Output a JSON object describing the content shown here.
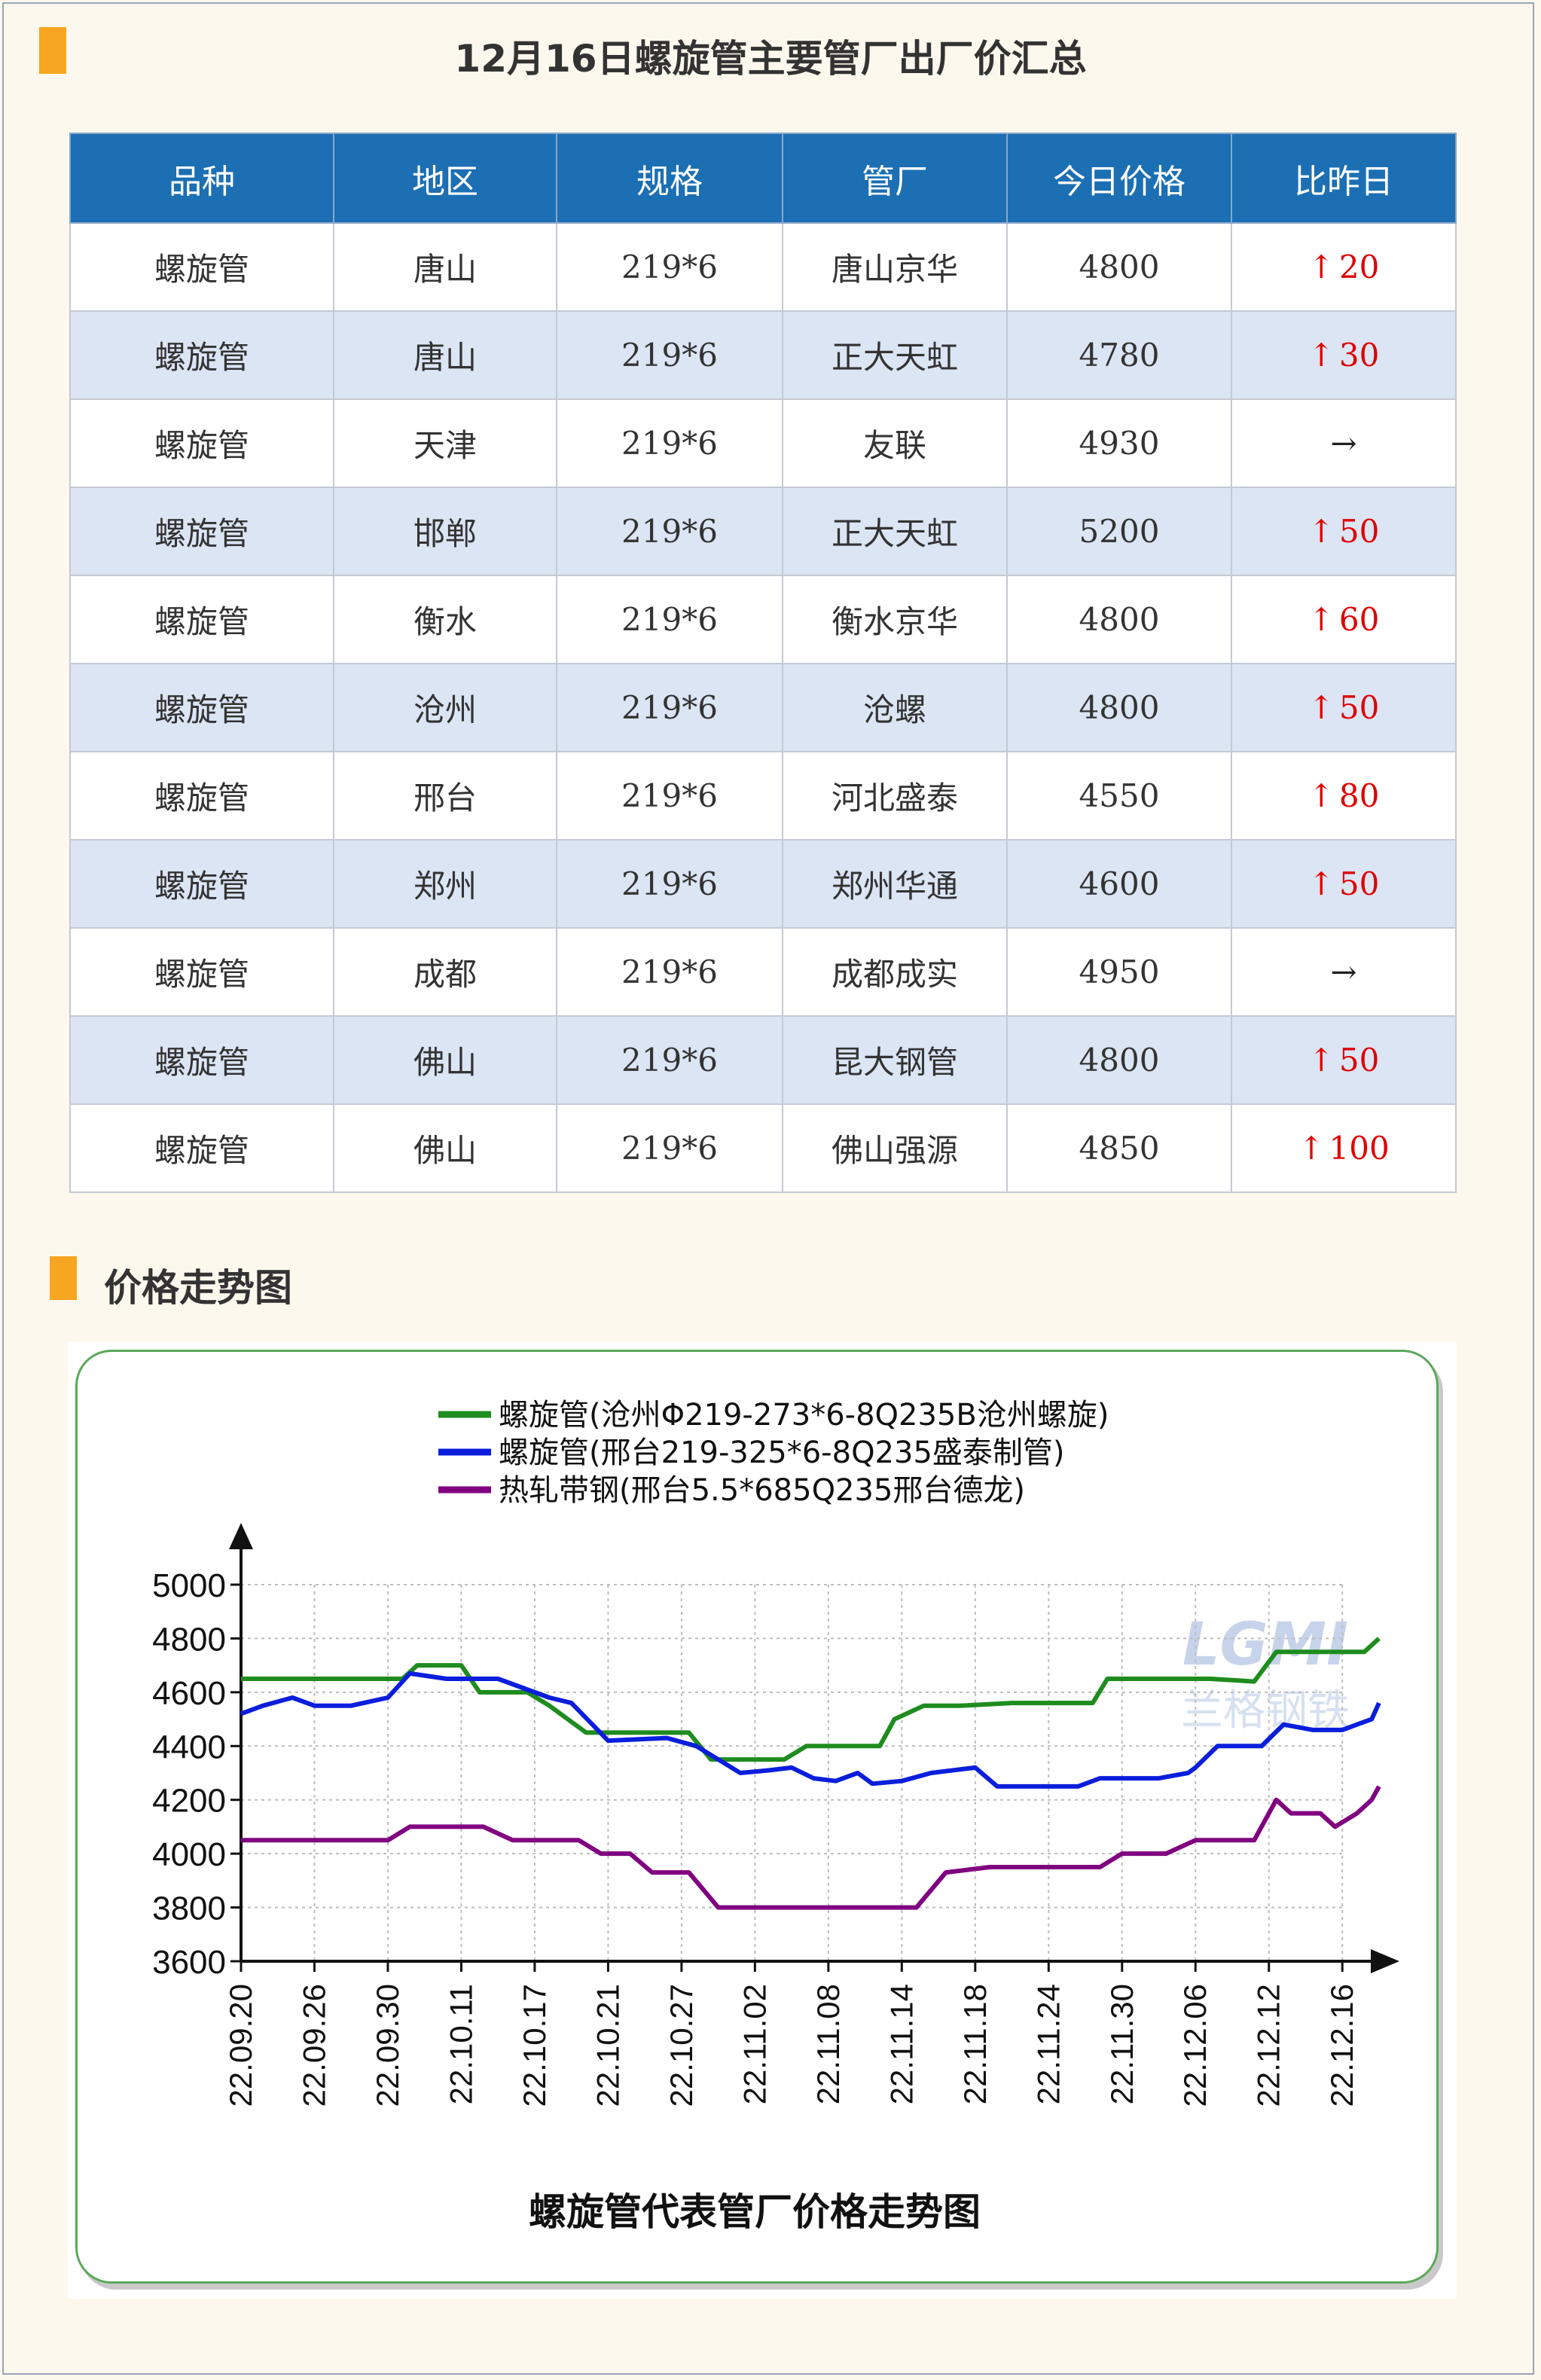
{
  "header": {
    "title": "12月16日螺旋管主要管厂出厂价汇总"
  },
  "table": {
    "columns": [
      "品种",
      "地区",
      "规格",
      "管厂",
      "今日价格",
      "比昨日"
    ],
    "rows": [
      {
        "product": "螺旋管",
        "region": "唐山",
        "spec": "219*6",
        "mill": "唐山京华",
        "price": "4800",
        "change": "20",
        "trend": "up"
      },
      {
        "product": "螺旋管",
        "region": "唐山",
        "spec": "219*6",
        "mill": "正大天虹",
        "price": "4780",
        "change": "30",
        "trend": "up"
      },
      {
        "product": "螺旋管",
        "region": "天津",
        "spec": "219*6",
        "mill": "友联",
        "price": "4930",
        "change": "",
        "trend": "flat"
      },
      {
        "product": "螺旋管",
        "region": "邯郸",
        "spec": "219*6",
        "mill": "正大天虹",
        "price": "5200",
        "change": "50",
        "trend": "up"
      },
      {
        "product": "螺旋管",
        "region": "衡水",
        "spec": "219*6",
        "mill": "衡水京华",
        "price": "4800",
        "change": "60",
        "trend": "up"
      },
      {
        "product": "螺旋管",
        "region": "沧州",
        "spec": "219*6",
        "mill": "沧螺",
        "price": "4800",
        "change": "50",
        "trend": "up"
      },
      {
        "product": "螺旋管",
        "region": "邢台",
        "spec": "219*6",
        "mill": "河北盛泰",
        "price": "4550",
        "change": "80",
        "trend": "up"
      },
      {
        "product": "螺旋管",
        "region": "郑州",
        "spec": "219*6",
        "mill": "郑州华通",
        "price": "4600",
        "change": "50",
        "trend": "up"
      },
      {
        "product": "螺旋管",
        "region": "成都",
        "spec": "219*6",
        "mill": "成都成实",
        "price": "4950",
        "change": "",
        "trend": "flat"
      },
      {
        "product": "螺旋管",
        "region": "佛山",
        "spec": "219*6",
        "mill": "昆大钢管",
        "price": "4800",
        "change": "50",
        "trend": "up"
      },
      {
        "product": "螺旋管",
        "region": "佛山",
        "spec": "219*6",
        "mill": "佛山强源",
        "price": "4850",
        "change": "100",
        "trend": "up"
      }
    ],
    "up_arrow": "↑",
    "flat_arrow": "→"
  },
  "section": {
    "title": "价格走势图"
  },
  "chart_data": {
    "type": "line",
    "title": "螺旋管代表管厂价格走势图",
    "watermark": "LGMI 兰格钢铁",
    "x": [
      "22.09.20",
      "22.09.26",
      "22.09.30",
      "22.10.11",
      "22.10.17",
      "22.10.21",
      "22.10.27",
      "22.11.02",
      "22.11.08",
      "22.11.14",
      "22.11.18",
      "22.11.24",
      "22.11.30",
      "22.12.06",
      "22.12.12",
      "22.12.16"
    ],
    "ylim": [
      3600,
      5000
    ],
    "yticks": [
      3600,
      3800,
      4000,
      4200,
      4400,
      4600,
      4800,
      5000
    ],
    "grid": true,
    "legend_position": "top-center",
    "series": [
      {
        "name": "螺旋管(沧州Φ219-273*6-8Q235B沧州螺旋)",
        "color": "#1e8c1e",
        "points": [
          [
            0,
            4650
          ],
          [
            1.6,
            4650
          ],
          [
            2.2,
            4650
          ],
          [
            2.4,
            4700
          ],
          [
            3.0,
            4700
          ],
          [
            3.25,
            4600
          ],
          [
            3.9,
            4600
          ],
          [
            4.2,
            4550
          ],
          [
            4.7,
            4450
          ],
          [
            5.3,
            4450
          ],
          [
            6.1,
            4450
          ],
          [
            6.4,
            4350
          ],
          [
            7.4,
            4350
          ],
          [
            7.7,
            4400
          ],
          [
            8.7,
            4400
          ],
          [
            8.9,
            4500
          ],
          [
            9.3,
            4550
          ],
          [
            9.8,
            4550
          ],
          [
            10.5,
            4560
          ],
          [
            11.6,
            4560
          ],
          [
            11.8,
            4650
          ],
          [
            13.2,
            4650
          ],
          [
            13.8,
            4640
          ],
          [
            14.1,
            4750
          ],
          [
            15.0,
            4750
          ],
          [
            15.3,
            4750
          ],
          [
            15.5,
            4800
          ]
        ]
      },
      {
        "name": "螺旋管(邢台219-325*6-8Q235盛泰制管)",
        "color": "#0a1edc",
        "points": [
          [
            0,
            4520
          ],
          [
            0.3,
            4550
          ],
          [
            0.7,
            4580
          ],
          [
            1.0,
            4550
          ],
          [
            1.5,
            4550
          ],
          [
            2.0,
            4580
          ],
          [
            2.3,
            4670
          ],
          [
            2.8,
            4650
          ],
          [
            3.5,
            4650
          ],
          [
            4.2,
            4580
          ],
          [
            4.5,
            4560
          ],
          [
            5.0,
            4420
          ],
          [
            5.8,
            4430
          ],
          [
            6.2,
            4400
          ],
          [
            6.5,
            4350
          ],
          [
            6.8,
            4300
          ],
          [
            7.2,
            4310
          ],
          [
            7.5,
            4320
          ],
          [
            7.8,
            4280
          ],
          [
            8.1,
            4270
          ],
          [
            8.4,
            4300
          ],
          [
            8.6,
            4260
          ],
          [
            9.0,
            4270
          ],
          [
            9.4,
            4300
          ],
          [
            10.0,
            4320
          ],
          [
            10.3,
            4250
          ],
          [
            11.0,
            4250
          ],
          [
            11.4,
            4250
          ],
          [
            11.7,
            4280
          ],
          [
            12.5,
            4280
          ],
          [
            12.9,
            4300
          ],
          [
            13.0,
            4320
          ],
          [
            13.3,
            4400
          ],
          [
            13.9,
            4400
          ],
          [
            14.2,
            4480
          ],
          [
            14.6,
            4460
          ],
          [
            15.0,
            4460
          ],
          [
            15.2,
            4480
          ],
          [
            15.4,
            4500
          ],
          [
            15.5,
            4560
          ]
        ]
      },
      {
        "name": "热轧带钢(邢台5.5*685Q235邢台德龙)",
        "color": "#800080",
        "points": [
          [
            0,
            4050
          ],
          [
            2.0,
            4050
          ],
          [
            2.3,
            4100
          ],
          [
            3.3,
            4100
          ],
          [
            3.7,
            4050
          ],
          [
            4.6,
            4050
          ],
          [
            4.9,
            4000
          ],
          [
            5.3,
            4000
          ],
          [
            5.6,
            3930
          ],
          [
            6.1,
            3930
          ],
          [
            6.5,
            3800
          ],
          [
            9.2,
            3800
          ],
          [
            9.6,
            3930
          ],
          [
            10.2,
            3950
          ],
          [
            11.1,
            3950
          ],
          [
            11.7,
            3950
          ],
          [
            12.0,
            4000
          ],
          [
            12.6,
            4000
          ],
          [
            13.0,
            4050
          ],
          [
            13.8,
            4050
          ],
          [
            14.1,
            4200
          ],
          [
            14.3,
            4150
          ],
          [
            14.7,
            4150
          ],
          [
            14.9,
            4100
          ],
          [
            15.2,
            4150
          ],
          [
            15.4,
            4200
          ],
          [
            15.5,
            4250
          ]
        ]
      }
    ]
  }
}
